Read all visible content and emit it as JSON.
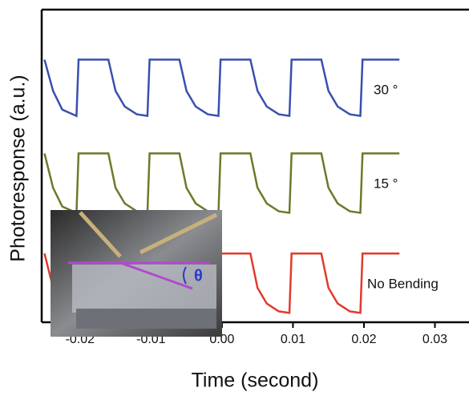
{
  "chart_data": {
    "type": "line",
    "xlabel": "Time (second)",
    "ylabel": "Photoresponse (a.u.)",
    "x": [
      -0.025,
      -0.0238,
      -0.0225,
      -0.0205,
      -0.0202,
      -0.016,
      -0.015,
      -0.0137,
      -0.012,
      -0.0105,
      -0.0102,
      -0.006,
      -0.005,
      -0.0037,
      -0.002,
      -0.0005,
      -0.0002,
      0.004,
      0.005,
      0.0063,
      0.008,
      0.0095,
      0.0098,
      0.014,
      0.015,
      0.0163,
      0.018,
      0.0195,
      0.0198,
      0.025
    ],
    "series": [
      {
        "name": "30 °",
        "color": "#3a4fb0",
        "values": [
          8.4,
          7.4,
          6.8,
          6.6,
          8.4,
          8.4,
          7.4,
          6.9,
          6.65,
          6.6,
          8.4,
          8.4,
          7.4,
          6.9,
          6.65,
          6.6,
          8.4,
          8.4,
          7.4,
          6.9,
          6.65,
          6.6,
          8.4,
          8.4,
          7.4,
          6.9,
          6.65,
          6.6,
          8.4,
          8.4
        ]
      },
      {
        "name": "15 °",
        "color": "#6b7a2a",
        "values": [
          5.4,
          4.3,
          3.7,
          3.5,
          5.4,
          5.4,
          4.3,
          3.8,
          3.55,
          3.5,
          5.4,
          5.4,
          4.3,
          3.8,
          3.55,
          3.5,
          5.4,
          5.4,
          4.3,
          3.8,
          3.55,
          3.5,
          5.4,
          5.4,
          4.3,
          3.8,
          3.55,
          3.5,
          5.4,
          5.4
        ]
      },
      {
        "name": "No Bending",
        "color": "#e03a2e",
        "values": [
          2.2,
          1.1,
          0.5,
          0.3,
          2.2,
          2.2,
          1.1,
          0.6,
          0.35,
          0.3,
          2.2,
          2.2,
          1.1,
          0.6,
          0.35,
          0.3,
          2.2,
          2.2,
          1.1,
          0.6,
          0.35,
          0.3,
          2.2,
          2.2,
          1.1,
          0.6,
          0.35,
          0.3,
          2.2,
          2.2
        ]
      }
    ],
    "xlim": [
      -0.0254,
      0.0348
    ],
    "ylim": [
      0,
      10
    ],
    "xticks": [
      -0.02,
      -0.01,
      {
        "value": 0,
        "label": "0.00"
      },
      0.01,
      0.02,
      0.03
    ],
    "inset_label": "θ"
  }
}
